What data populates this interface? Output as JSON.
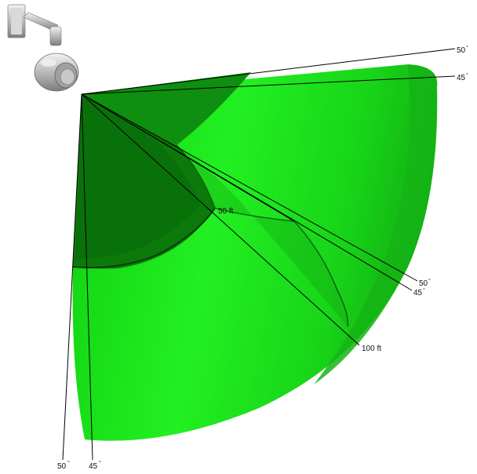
{
  "labels": {
    "top_50": "50",
    "top_45": "45",
    "right_50": "50",
    "right_45": "45",
    "bottom_50": "50",
    "bottom_45": "45",
    "range_50ft": "50 ft",
    "range_100ft": "100 ft",
    "degree_mark": "°"
  },
  "colors": {
    "bright_green": "#19ee19",
    "mid_green": "#14b814",
    "dark_green": "#0c8a0c",
    "darkest_green": "#086a08",
    "edge_dark": "#0e6a0e",
    "line": "#000000"
  },
  "icons": {
    "camera": "camera-detector-icon"
  }
}
